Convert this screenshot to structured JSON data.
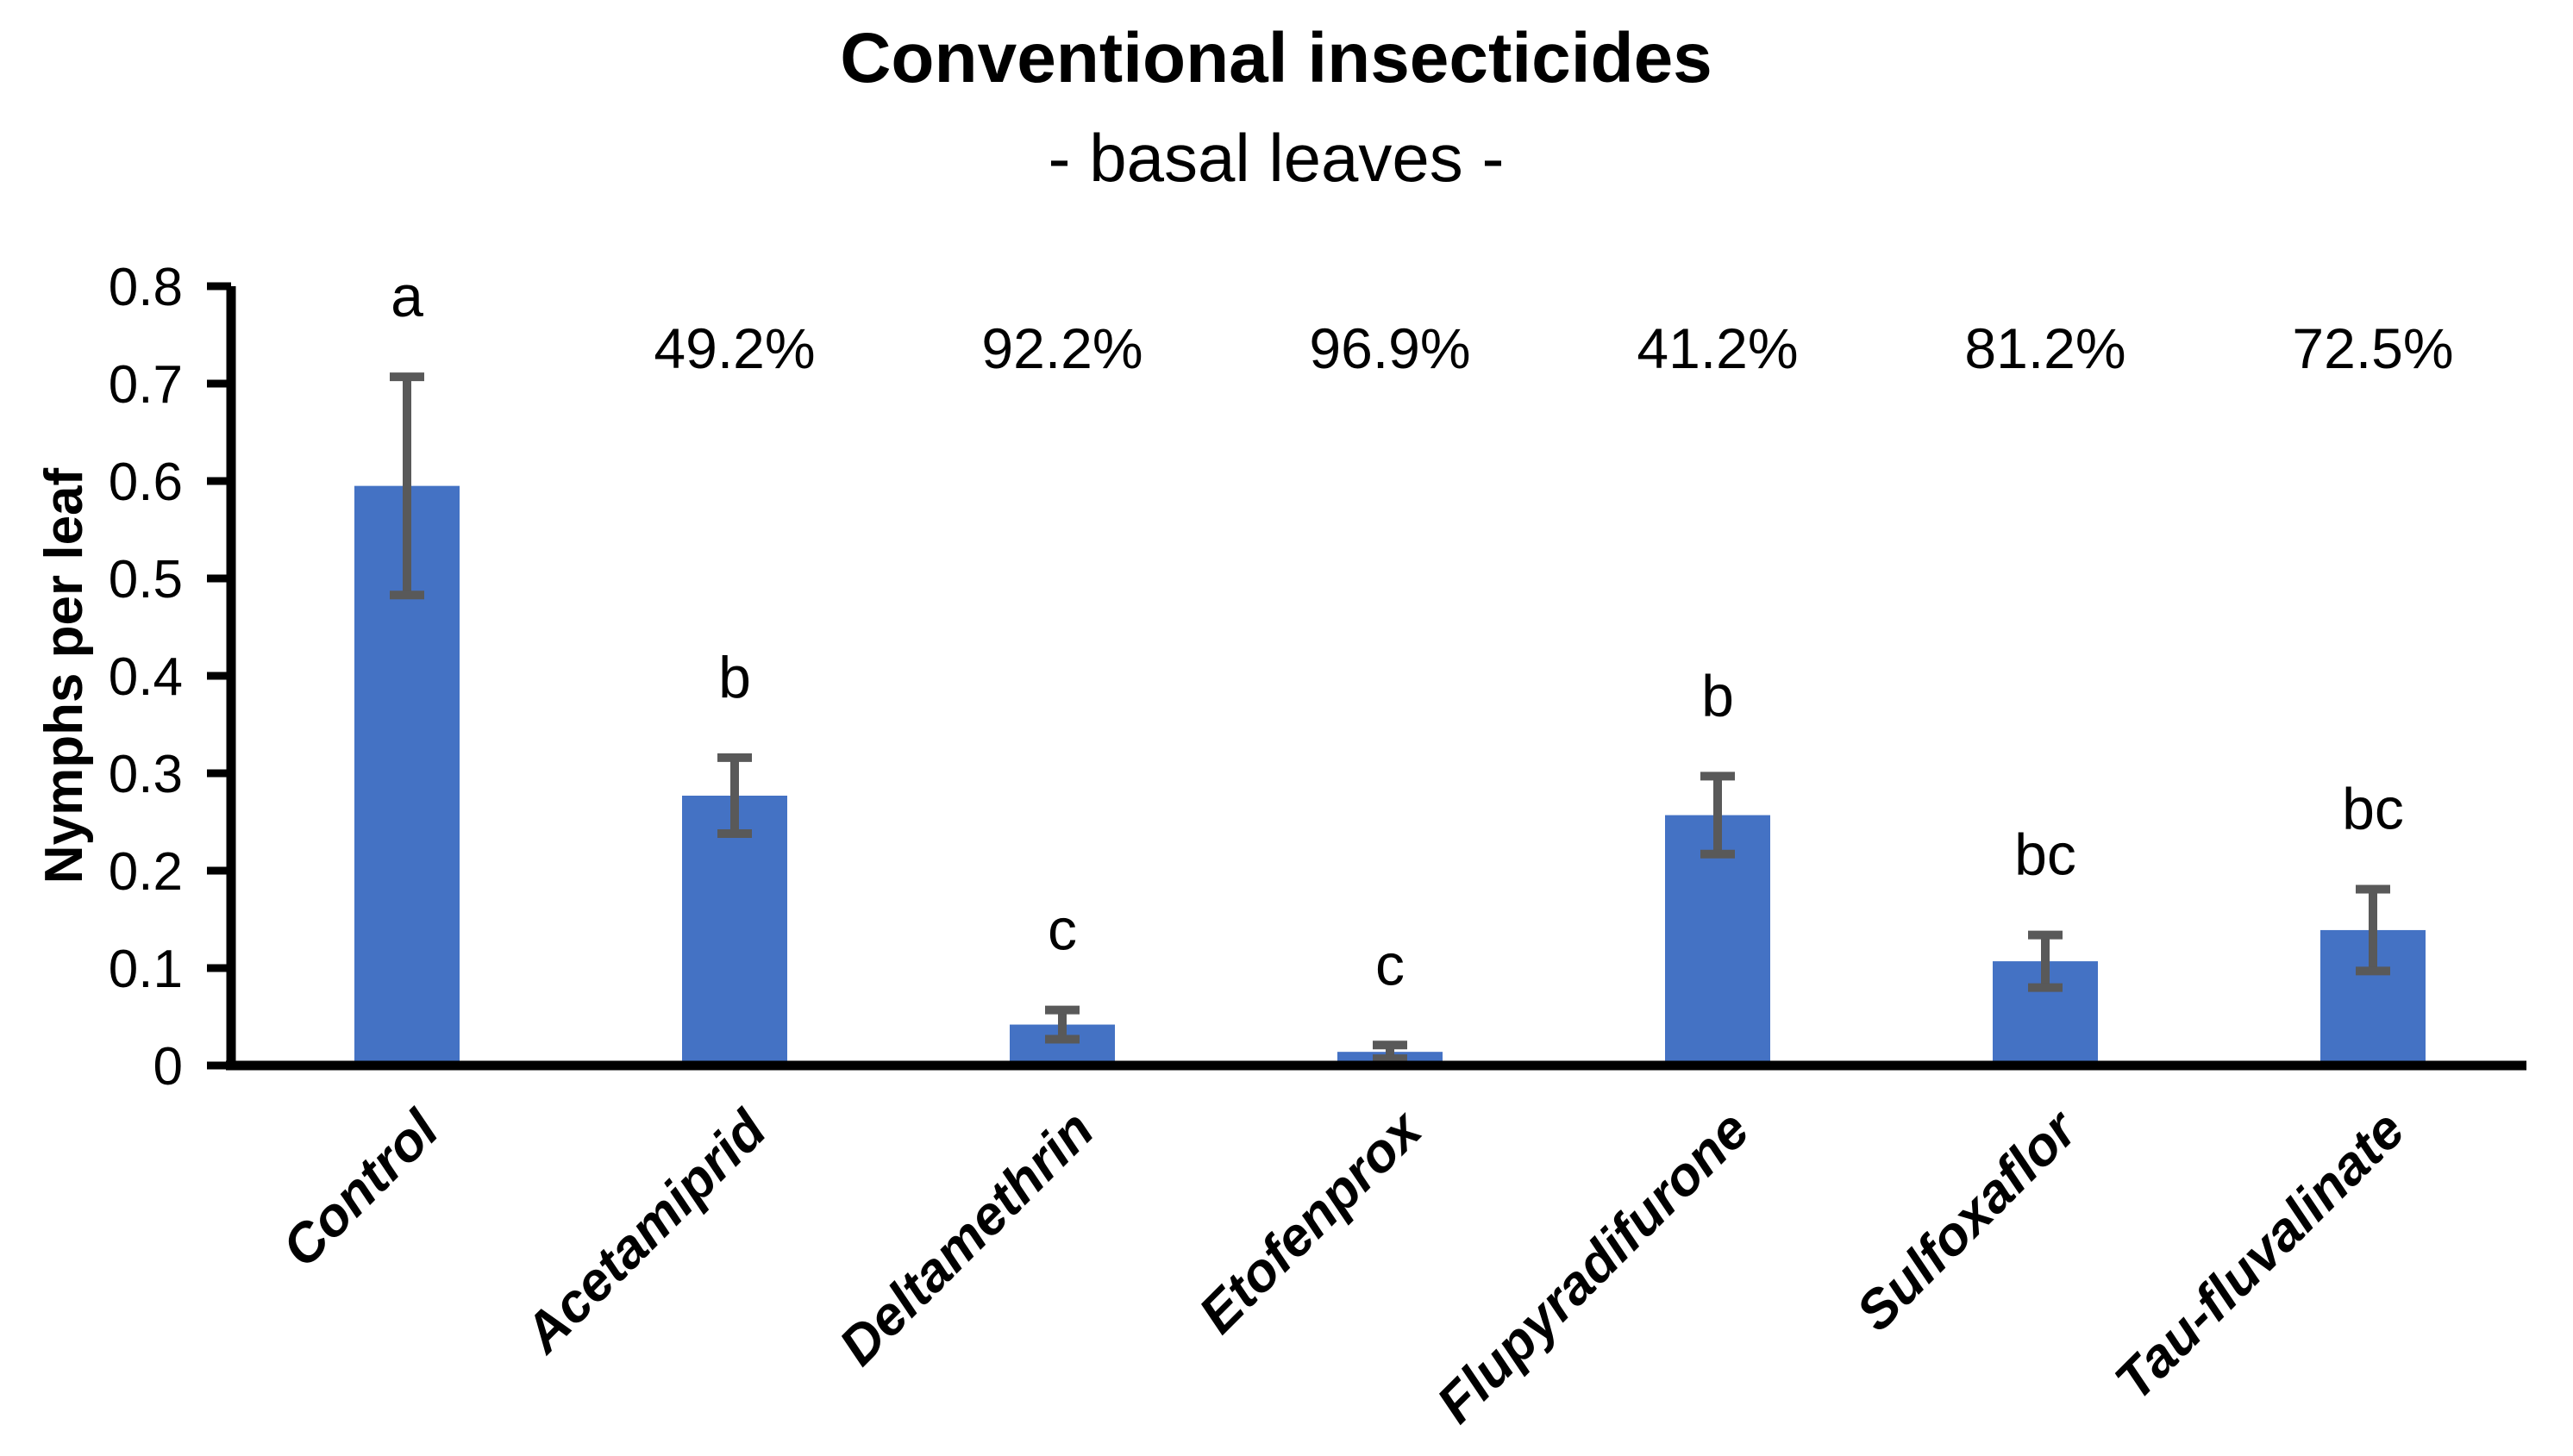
{
  "chart_data": {
    "type": "bar",
    "title": "Conventional insecticides",
    "subtitle": "- basal leaves -",
    "ylabel": "Nymphs per leaf",
    "xlabel": "",
    "ylim": [
      0,
      0.8
    ],
    "ytick_step": 0.1,
    "ytick_labels": [
      "0",
      "0.1",
      "0.2",
      "0.3",
      "0.4",
      "0.5",
      "0.6",
      "0.7",
      "0.8"
    ],
    "grid": false,
    "legend": false,
    "categories": [
      "Control",
      "Acetamiprid",
      "Deltamethrin",
      "Etofenprox",
      "Flupyradifurone",
      "Sulfoxaflor",
      "Tau-fluvalinate"
    ],
    "values": [
      0.595,
      0.277,
      0.042,
      0.014,
      0.257,
      0.107,
      0.139
    ],
    "errors": [
      0.112,
      0.039,
      0.015,
      0.007,
      0.04,
      0.027,
      0.042
    ],
    "sig_letters": [
      "a",
      "b",
      "c",
      "c",
      "b",
      "bc",
      "bc"
    ],
    "reduction_pcts": [
      "",
      "49.2%",
      "92.2%",
      "96.9%",
      "41.2%",
      "81.2%",
      "72.5%"
    ],
    "colors": {
      "bar_fill": "#4472C4",
      "error_bar": "#595959",
      "axis": "#000000",
      "text": "#000000",
      "background": "#ffffff"
    }
  }
}
